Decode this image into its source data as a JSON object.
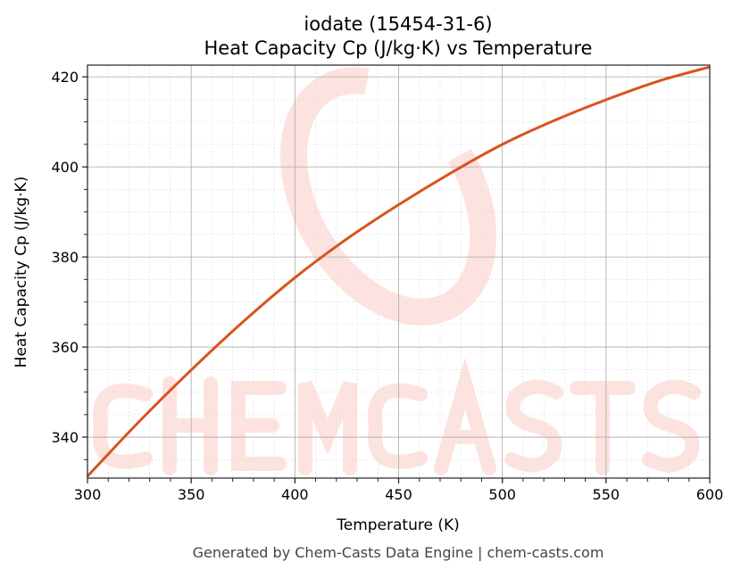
{
  "chart_data": {
    "type": "line",
    "title": "iodate (15454-31-6)",
    "subtitle": "Heat Capacity Cp (J/kg·K) vs Temperature",
    "xlabel": "Temperature (K)",
    "ylabel": "Heat Capacity Cp (J/kg·K)",
    "xlim": [
      300,
      600
    ],
    "ylim": [
      330.9,
      422.6
    ],
    "x_ticks": [
      300,
      350,
      400,
      450,
      500,
      550,
      600
    ],
    "y_ticks": [
      340,
      360,
      380,
      400,
      420
    ],
    "grid": true,
    "line_color": "#d9531e",
    "series": [
      {
        "x": [
          300,
          325,
          350,
          375,
          400,
          425,
          450,
          475,
          500,
          525,
          550,
          575,
          600
        ],
        "y": [
          331.3,
          343.5,
          354.9,
          365.6,
          375.4,
          384.0,
          391.6,
          398.6,
          405.0,
          410.3,
          414.9,
          419.0,
          422.2
        ]
      }
    ]
  },
  "watermark": "CHEMCASTS",
  "footer": "Generated by Chem-Casts Data Engine | chem-casts.com"
}
